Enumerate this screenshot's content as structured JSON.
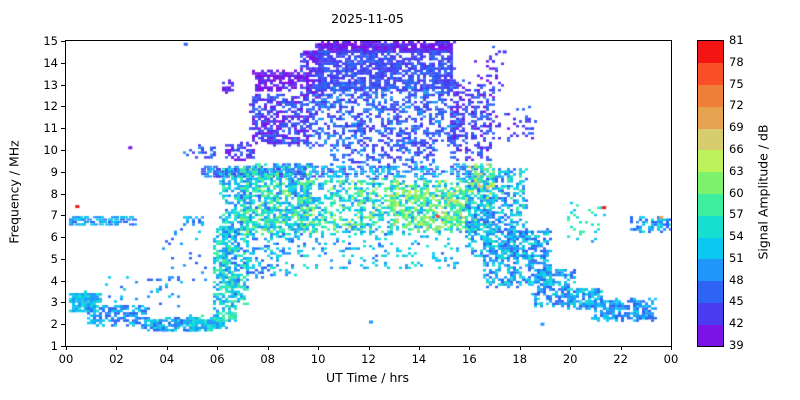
{
  "chart_data": {
    "type": "scatter",
    "title": "2025-11-05",
    "xlabel": "UT Time / hrs",
    "ylabel": "Frequency / MHz",
    "xlim": [
      0,
      24
    ],
    "ylim": [
      1,
      15
    ],
    "xticks": {
      "values": [
        0,
        2,
        4,
        6,
        8,
        10,
        12,
        14,
        16,
        18,
        20,
        22,
        24
      ],
      "labels": [
        "00",
        "02",
        "04",
        "06",
        "08",
        "10",
        "12",
        "14",
        "16",
        "18",
        "20",
        "22",
        "00"
      ]
    },
    "yticks": {
      "values": [
        1,
        2,
        3,
        4,
        5,
        6,
        7,
        8,
        9,
        10,
        11,
        12,
        13,
        14,
        15
      ],
      "labels": [
        "1",
        "2",
        "3",
        "4",
        "5",
        "6",
        "7",
        "8",
        "9",
        "10",
        "11",
        "12",
        "13",
        "14",
        "15"
      ]
    },
    "colorbar": {
      "label": "Signal Amplitude / dB",
      "min": 39,
      "max": 81,
      "step": 3,
      "ticks": [
        "39",
        "42",
        "45",
        "48",
        "51",
        "54",
        "57",
        "60",
        "63",
        "66",
        "69",
        "72",
        "75",
        "78",
        "81"
      ],
      "colors": [
        "#7b12e6",
        "#4a3af0",
        "#2e64f5",
        "#1f96fa",
        "#0ac8f0",
        "#16dfd0",
        "#3cee9e",
        "#7df26b",
        "#bdf25a",
        "#d8cd6e",
        "#e5a34f",
        "#f07f38",
        "#fa4f26",
        "#f51414"
      ]
    },
    "blobs": [
      {
        "t0": 0.1,
        "t1": 1.3,
        "f0": 2.6,
        "f1": 3.5,
        "n": 160,
        "a0": 48,
        "a1": 56
      },
      {
        "t0": 0.0,
        "t1": 2.6,
        "f0": 6.6,
        "f1": 7.0,
        "n": 70,
        "a0": 47,
        "a1": 54,
        "w": 5,
        "h": 2
      },
      {
        "t0": 0.8,
        "t1": 3.2,
        "f0": 2.0,
        "f1": 2.9,
        "n": 170,
        "a0": 45,
        "a1": 54
      },
      {
        "t0": 3.0,
        "t1": 5.2,
        "f0": 1.75,
        "f1": 2.3,
        "n": 160,
        "a0": 45,
        "a1": 55
      },
      {
        "t0": 4.8,
        "t1": 6.3,
        "f0": 1.8,
        "f1": 2.4,
        "n": 120,
        "a0": 48,
        "a1": 58
      },
      {
        "t0": 1.5,
        "t1": 4.5,
        "f0": 2.8,
        "f1": 4.2,
        "n": 35,
        "a0": 46,
        "a1": 54
      },
      {
        "t0": 3.8,
        "t1": 5.5,
        "f0": 4.0,
        "f1": 6.5,
        "n": 25,
        "a0": 45,
        "a1": 53
      },
      {
        "t0": 4.6,
        "t1": 5.4,
        "f0": 6.6,
        "f1": 7.0,
        "n": 20,
        "a0": 46,
        "a1": 53
      },
      {
        "t0": 5.3,
        "t1": 8.4,
        "f0": 8.8,
        "f1": 9.25,
        "n": 150,
        "a0": 42,
        "a1": 52,
        "w": 5,
        "h": 2
      },
      {
        "t0": 4.6,
        "t1": 5.9,
        "f0": 9.7,
        "f1": 10.3,
        "n": 25,
        "a0": 42,
        "a1": 50
      },
      {
        "t0": 5.8,
        "t1": 6.7,
        "f0": 2.2,
        "f1": 6.5,
        "n": 260,
        "a0": 48,
        "a1": 60
      },
      {
        "t0": 6.1,
        "t1": 7.2,
        "f0": 3.0,
        "f1": 9.3,
        "n": 380,
        "a0": 46,
        "a1": 60
      },
      {
        "t0": 6.3,
        "t1": 7.4,
        "f0": 9.6,
        "f1": 10.4,
        "n": 60,
        "a0": 40,
        "a1": 48
      },
      {
        "t0": 6.2,
        "t1": 6.6,
        "f0": 12.7,
        "f1": 13.3,
        "n": 18,
        "a0": 39,
        "a1": 45
      },
      {
        "t0": 6.9,
        "t1": 9.6,
        "f0": 6.2,
        "f1": 9.4,
        "n": 700,
        "a0": 47,
        "a1": 62
      },
      {
        "t0": 7.0,
        "t1": 9.0,
        "f0": 4.2,
        "f1": 6.2,
        "n": 120,
        "a0": 46,
        "a1": 56
      },
      {
        "t0": 7.3,
        "t1": 9.6,
        "f0": 10.3,
        "f1": 12.6,
        "n": 420,
        "a0": 40,
        "a1": 48
      },
      {
        "t0": 7.4,
        "t1": 9.2,
        "f0": 12.8,
        "f1": 13.7,
        "n": 160,
        "a0": 39,
        "a1": 43
      },
      {
        "t0": 9.3,
        "t1": 10.2,
        "f0": 12.5,
        "f1": 14.6,
        "n": 200,
        "a0": 39,
        "a1": 46
      },
      {
        "t0": 9.9,
        "t1": 15.3,
        "f0": 14.5,
        "f1": 15.0,
        "n": 500,
        "a0": 39,
        "a1": 44
      },
      {
        "t0": 9.9,
        "t1": 15.3,
        "f0": 12.8,
        "f1": 14.6,
        "n": 1000,
        "a0": 42,
        "a1": 48
      },
      {
        "t0": 9.6,
        "t1": 15.6,
        "f0": 10.2,
        "f1": 13.0,
        "n": 800,
        "a0": 42,
        "a1": 50
      },
      {
        "t0": 8.4,
        "t1": 16.6,
        "f0": 8.75,
        "f1": 9.35,
        "n": 260,
        "a0": 44,
        "a1": 54,
        "w": 4,
        "h": 2
      },
      {
        "t0": 9.2,
        "t1": 16.8,
        "f0": 6.3,
        "f1": 8.7,
        "n": 1000,
        "a0": 48,
        "a1": 64
      },
      {
        "t0": 12.8,
        "t1": 15.8,
        "f0": 6.5,
        "f1": 8.3,
        "n": 220,
        "a0": 55,
        "a1": 67
      },
      {
        "t0": 9.0,
        "t1": 15.5,
        "f0": 4.6,
        "f1": 6.3,
        "n": 160,
        "a0": 47,
        "a1": 57
      },
      {
        "t0": 10.3,
        "t1": 14.6,
        "f0": 9.4,
        "f1": 10.2,
        "n": 120,
        "a0": 42,
        "a1": 50
      },
      {
        "t0": 15.2,
        "t1": 16.9,
        "f0": 9.6,
        "f1": 13.2,
        "n": 260,
        "a0": 41,
        "a1": 48
      },
      {
        "t0": 15.8,
        "t1": 18.2,
        "f0": 5.2,
        "f1": 9.2,
        "n": 480,
        "a0": 45,
        "a1": 58
      },
      {
        "t0": 16.5,
        "t1": 19.2,
        "f0": 3.8,
        "f1": 6.4,
        "n": 420,
        "a0": 45,
        "a1": 56
      },
      {
        "t0": 18.5,
        "t1": 20.2,
        "f0": 2.9,
        "f1": 4.6,
        "n": 200,
        "a0": 45,
        "a1": 55
      },
      {
        "t0": 19.8,
        "t1": 21.2,
        "f0": 2.8,
        "f1": 3.7,
        "n": 130,
        "a0": 47,
        "a1": 56
      },
      {
        "t0": 20.8,
        "t1": 23.3,
        "f0": 2.2,
        "f1": 3.2,
        "n": 220,
        "a0": 45,
        "a1": 54
      },
      {
        "t0": 22.3,
        "t1": 23.9,
        "f0": 6.3,
        "f1": 7.0,
        "n": 70,
        "a0": 45,
        "a1": 56
      },
      {
        "t0": 19.8,
        "t1": 21.3,
        "f0": 5.8,
        "f1": 7.6,
        "n": 30,
        "a0": 50,
        "a1": 60
      },
      {
        "t0": 16.9,
        "t1": 18.6,
        "f0": 10.5,
        "f1": 12.0,
        "n": 40,
        "a0": 41,
        "a1": 47
      },
      {
        "t0": 16.2,
        "t1": 17.3,
        "f0": 12.8,
        "f1": 14.8,
        "n": 30,
        "a0": 40,
        "a1": 46
      },
      {
        "t0": 16.0,
        "t1": 16.9,
        "f0": 8.3,
        "f1": 9.4,
        "n": 60,
        "a0": 54,
        "a1": 69
      }
    ],
    "stray_points": [
      {
        "t": 0.45,
        "f": 7.4,
        "a": 81
      },
      {
        "t": 21.35,
        "f": 7.35,
        "a": 80
      },
      {
        "t": 23.6,
        "f": 6.9,
        "a": 71
      },
      {
        "t": 14.75,
        "f": 6.95,
        "a": 75
      },
      {
        "t": 2.55,
        "f": 10.1,
        "a": 40
      },
      {
        "t": 4.75,
        "f": 14.85,
        "a": 45
      },
      {
        "t": 17.4,
        "f": 14.5,
        "a": 43
      },
      {
        "t": 12.1,
        "f": 2.1,
        "a": 50
      },
      {
        "t": 18.9,
        "f": 2.0,
        "a": 48
      }
    ]
  }
}
